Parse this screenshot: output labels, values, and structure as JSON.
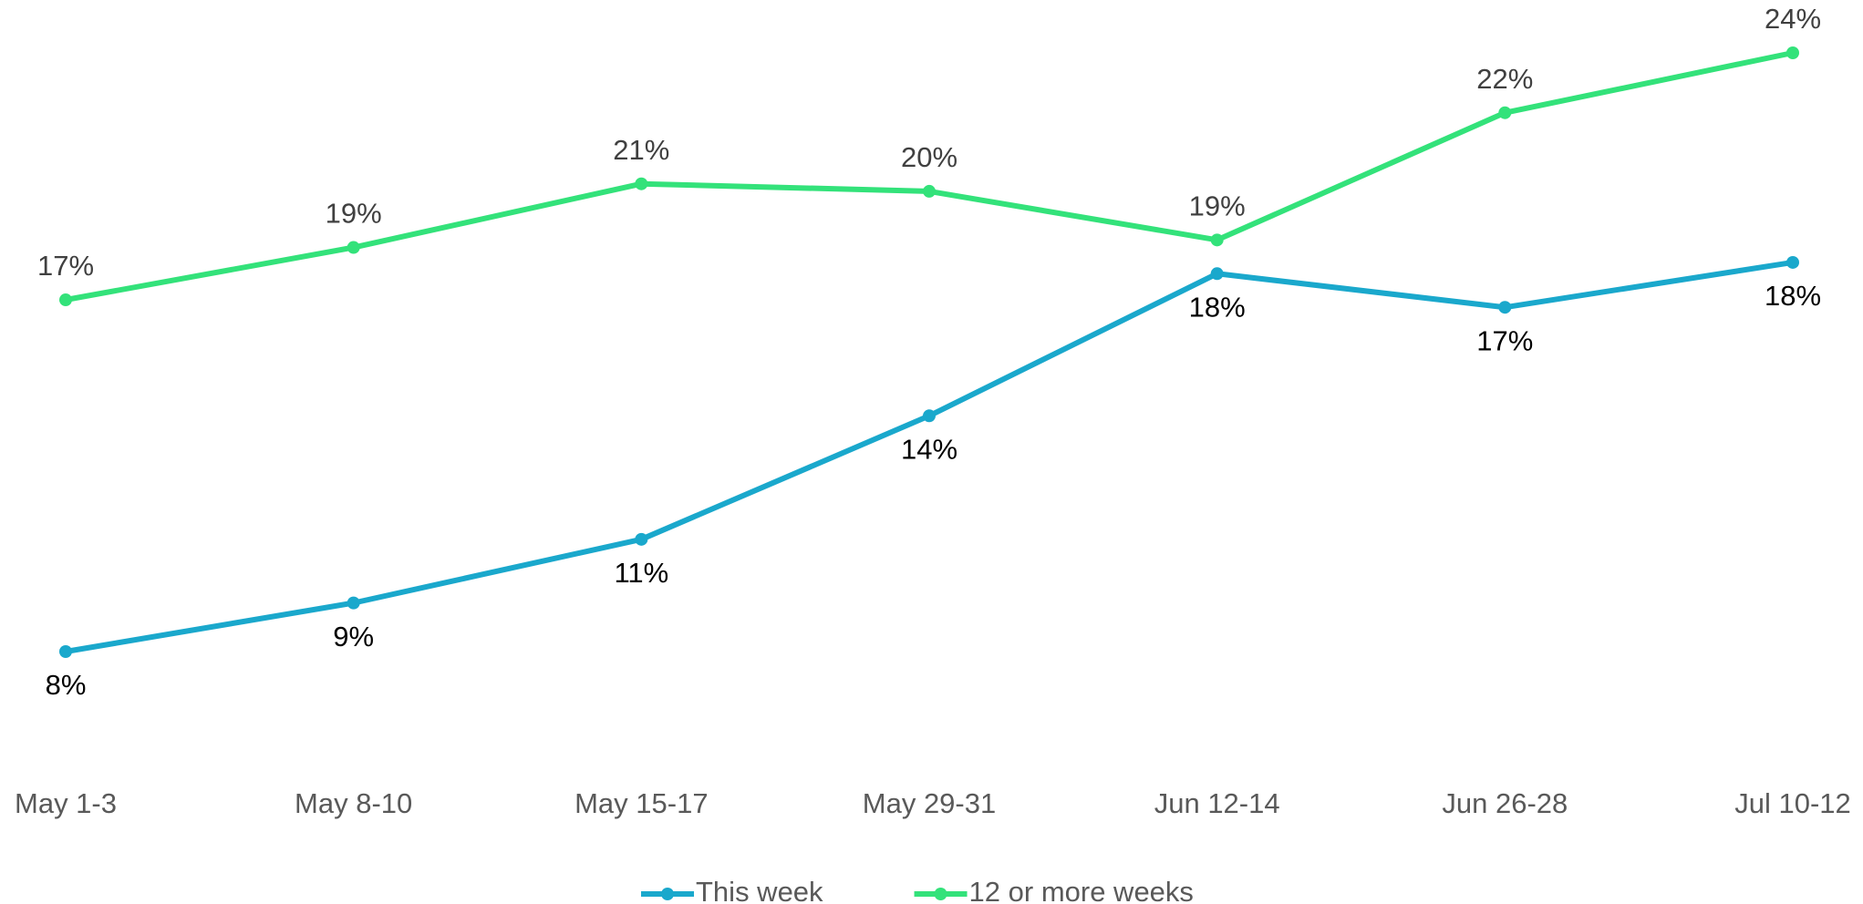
{
  "chart_data": {
    "type": "line",
    "categories": [
      "May 1-3",
      "May 8-10",
      "May 15-17",
      "May 29-31",
      "Jun 12-14",
      "Jun 26-28",
      "Jul 10-12"
    ],
    "series": [
      {
        "name": "This week",
        "color": "#1aa8cc",
        "values": [
          8.0,
          9.3,
          11.0,
          14.3,
          18.1,
          17.2,
          18.4
        ],
        "value_labels": [
          "8%",
          "9%",
          "11%",
          "14%",
          "18%",
          "17%",
          "18%"
        ]
      },
      {
        "name": "12 or more weeks",
        "color": "#33e27a",
        "values": [
          17.4,
          18.8,
          20.5,
          20.3,
          19.0,
          22.4,
          24.0
        ],
        "value_labels": [
          "17%",
          "19%",
          "21%",
          "20%",
          "19%",
          "22%",
          "24%"
        ]
      }
    ],
    "grid": false
  }
}
